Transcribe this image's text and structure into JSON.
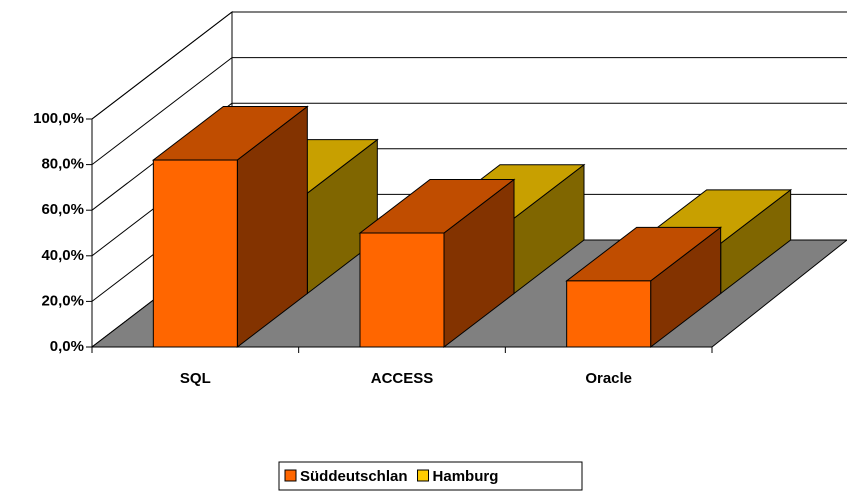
{
  "chart_data": {
    "type": "bar3d",
    "categories": [
      "SQL",
      "ACCESS",
      "Oracle"
    ],
    "series": [
      {
        "name": "Süddeutschlan",
        "color": "#ff6600",
        "top": "#c04d00",
        "side": "#833300",
        "values": [
          82,
          50,
          29
        ]
      },
      {
        "name": "Hamburg",
        "color": "#ffcc00",
        "top": "#c8a000",
        "side": "#806600",
        "values": [
          44,
          33,
          22
        ]
      }
    ],
    "ylim": [
      0,
      100
    ],
    "yticks": [
      {
        "value": 0,
        "label": "0,0%"
      },
      {
        "value": 20,
        "label": "20,0%"
      },
      {
        "value": 40,
        "label": "40,0%"
      },
      {
        "value": 60,
        "label": "60,0%"
      },
      {
        "value": 80,
        "label": "80,0%"
      },
      {
        "value": 100,
        "label": "100,0%"
      }
    ],
    "grid": true,
    "legend": "bottom"
  }
}
